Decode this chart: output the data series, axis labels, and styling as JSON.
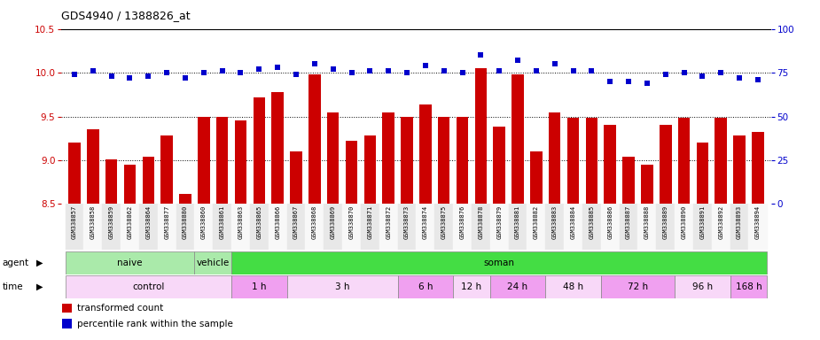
{
  "title": "GDS4940 / 1388826_at",
  "samples": [
    "GSM338857",
    "GSM338858",
    "GSM338859",
    "GSM338862",
    "GSM338864",
    "GSM338877",
    "GSM338880",
    "GSM338860",
    "GSM338861",
    "GSM338863",
    "GSM338865",
    "GSM338866",
    "GSM338867",
    "GSM338868",
    "GSM338869",
    "GSM338870",
    "GSM338871",
    "GSM338872",
    "GSM338873",
    "GSM338874",
    "GSM338875",
    "GSM338876",
    "GSM338878",
    "GSM338879",
    "GSM338881",
    "GSM338882",
    "GSM338883",
    "GSM338884",
    "GSM338885",
    "GSM338886",
    "GSM338887",
    "GSM338888",
    "GSM338889",
    "GSM338890",
    "GSM338891",
    "GSM338892",
    "GSM338893",
    "GSM338894"
  ],
  "transformed_count": [
    9.2,
    9.35,
    9.01,
    8.95,
    9.04,
    9.28,
    8.62,
    9.5,
    9.5,
    9.45,
    9.72,
    9.78,
    9.1,
    9.98,
    9.55,
    9.22,
    9.28,
    9.55,
    9.5,
    9.64,
    9.5,
    9.5,
    10.05,
    9.38,
    9.98,
    9.1,
    9.55,
    9.48,
    9.48,
    9.4,
    9.04,
    8.95,
    9.4,
    9.48,
    9.2,
    9.48,
    9.28,
    9.32
  ],
  "percentile_rank": [
    74,
    76,
    73,
    72,
    73,
    75,
    72,
    75,
    76,
    75,
    77,
    78,
    74,
    80,
    77,
    75,
    76,
    76,
    75,
    79,
    76,
    75,
    85,
    76,
    82,
    76,
    80,
    76,
    76,
    70,
    70,
    69,
    74,
    75,
    73,
    75,
    72,
    71
  ],
  "ylim_left": [
    8.5,
    10.5
  ],
  "ylim_right": [
    0,
    100
  ],
  "yticks_left": [
    8.5,
    9.0,
    9.5,
    10.0,
    10.5
  ],
  "yticks_right": [
    0,
    25,
    50,
    75,
    100
  ],
  "bar_color": "#cc0000",
  "dot_color": "#0000cc",
  "bar_bottom": 8.5,
  "agent_groups": [
    {
      "label": "naive",
      "start": 0,
      "end": 7,
      "color": "#aaeaaa"
    },
    {
      "label": "vehicle",
      "start": 7,
      "end": 9,
      "color": "#aaeaaa"
    },
    {
      "label": "soman",
      "start": 9,
      "end": 38,
      "color": "#44dd44"
    }
  ],
  "time_groups": [
    {
      "label": "control",
      "start": 0,
      "end": 9,
      "color": "#f8d8f8"
    },
    {
      "label": "1 h",
      "start": 9,
      "end": 12,
      "color": "#f0a0f0"
    },
    {
      "label": "3 h",
      "start": 12,
      "end": 18,
      "color": "#f8d8f8"
    },
    {
      "label": "6 h",
      "start": 18,
      "end": 21,
      "color": "#f0a0f0"
    },
    {
      "label": "12 h",
      "start": 21,
      "end": 23,
      "color": "#f8d8f8"
    },
    {
      "label": "24 h",
      "start": 23,
      "end": 26,
      "color": "#f0a0f0"
    },
    {
      "label": "48 h",
      "start": 26,
      "end": 29,
      "color": "#f8d8f8"
    },
    {
      "label": "72 h",
      "start": 29,
      "end": 33,
      "color": "#f0a0f0"
    },
    {
      "label": "96 h",
      "start": 33,
      "end": 36,
      "color": "#f8d8f8"
    },
    {
      "label": "168 h",
      "start": 36,
      "end": 38,
      "color": "#f0a0f0"
    }
  ],
  "legend_items": [
    {
      "label": "transformed count",
      "color": "#cc0000"
    },
    {
      "label": "percentile rank within the sample",
      "color": "#0000cc"
    }
  ],
  "grid_lines": [
    9.0,
    9.5,
    10.0
  ],
  "left_color": "#cc0000",
  "right_color": "#0000cc"
}
